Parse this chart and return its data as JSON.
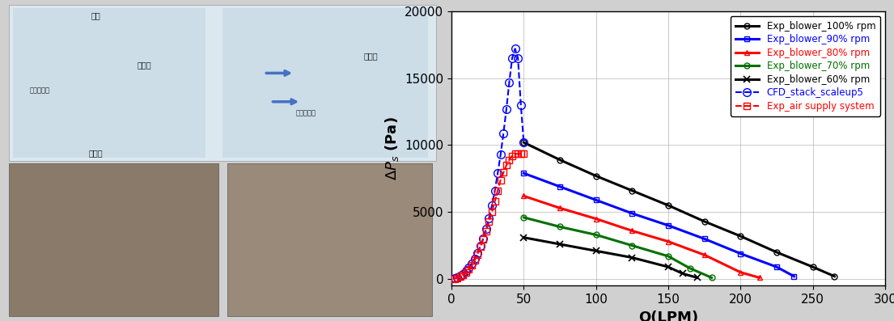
{
  "chart": {
    "xlim": [
      0,
      300
    ],
    "ylim": [
      -500,
      20000
    ],
    "xticks": [
      0,
      50,
      100,
      150,
      200,
      250,
      300
    ],
    "yticks": [
      0,
      5000,
      10000,
      15000,
      20000
    ],
    "xlabel": "Q(LPM)",
    "ylabel": "ΔP_s (Pa)",
    "grid": true,
    "series": [
      {
        "label": "Exp_blower_100% rpm",
        "color": "#000000",
        "linestyle": "-",
        "linewidth": 2.2,
        "marker": "o",
        "markersize": 5,
        "markerfacecolor": "none",
        "markeredgewidth": 1.0,
        "x": [
          50,
          75,
          100,
          125,
          150,
          175,
          200,
          225,
          250,
          265
        ],
        "y": [
          10200,
          8900,
          7700,
          6600,
          5500,
          4300,
          3200,
          2000,
          900,
          200
        ]
      },
      {
        "label": "Exp_blower_90% rpm",
        "color": "#0000ff",
        "linestyle": "-",
        "linewidth": 2.2,
        "marker": "s",
        "markersize": 5,
        "markerfacecolor": "none",
        "markeredgewidth": 1.0,
        "x": [
          50,
          75,
          100,
          125,
          150,
          175,
          200,
          225,
          237
        ],
        "y": [
          7900,
          6900,
          5900,
          4900,
          4000,
          3000,
          1900,
          900,
          200
        ]
      },
      {
        "label": "Exp_blower_80% rpm",
        "color": "#ff0000",
        "linestyle": "-",
        "linewidth": 2.2,
        "marker": "^",
        "markersize": 5,
        "markerfacecolor": "none",
        "markeredgewidth": 1.0,
        "x": [
          50,
          75,
          100,
          125,
          150,
          175,
          200,
          213
        ],
        "y": [
          6200,
          5300,
          4500,
          3600,
          2800,
          1800,
          500,
          100
        ]
      },
      {
        "label": "Exp_blower_70% rpm",
        "color": "#007000",
        "linestyle": "-",
        "linewidth": 2.2,
        "marker": "o",
        "markersize": 5,
        "markerfacecolor": "none",
        "markeredgewidth": 1.0,
        "x": [
          50,
          75,
          100,
          125,
          150,
          165,
          180
        ],
        "y": [
          4600,
          3900,
          3300,
          2500,
          1700,
          800,
          100
        ]
      },
      {
        "label": "Exp_blower_60% rpm",
        "color": "#000000",
        "linestyle": "-",
        "linewidth": 2.2,
        "marker": "x",
        "markersize": 6,
        "markerfacecolor": "none",
        "markeredgewidth": 1.2,
        "x": [
          50,
          75,
          100,
          125,
          150,
          160,
          170
        ],
        "y": [
          3100,
          2600,
          2100,
          1600,
          900,
          400,
          100
        ]
      },
      {
        "label": "CFD_stack_scaleup5",
        "color": "#0000ff",
        "linestyle": "--",
        "linewidth": 1.5,
        "marker": "o",
        "markersize": 7,
        "markerfacecolor": "none",
        "markeredgewidth": 1.0,
        "x": [
          2,
          4,
          6,
          8,
          10,
          12,
          14,
          16,
          18,
          20,
          22,
          24,
          26,
          28,
          30,
          32,
          34,
          36,
          38,
          40,
          42,
          44,
          46,
          48,
          50
        ],
        "y": [
          50,
          120,
          230,
          380,
          580,
          830,
          1130,
          1500,
          1940,
          2450,
          3050,
          3750,
          4550,
          5500,
          6600,
          7900,
          9300,
          10900,
          12700,
          14700,
          16500,
          17200,
          16500,
          13000,
          10200
        ]
      },
      {
        "label": "Exp_air supply system",
        "color": "#ff0000",
        "linestyle": "--",
        "linewidth": 1.5,
        "marker": "s",
        "markersize": 6,
        "markerfacecolor": "none",
        "markeredgewidth": 1.0,
        "x": [
          2,
          4,
          6,
          8,
          10,
          12,
          14,
          16,
          18,
          20,
          22,
          24,
          26,
          28,
          30,
          32,
          34,
          36,
          38,
          40,
          42,
          44,
          46,
          48,
          50
        ],
        "y": [
          30,
          80,
          160,
          290,
          470,
          700,
          1000,
          1380,
          1840,
          2400,
          2970,
          3590,
          4280,
          5000,
          5800,
          6600,
          7400,
          7950,
          8500,
          8900,
          9200,
          9350,
          9350,
          9350,
          9350
        ]
      }
    ],
    "legend_fontsize": 8.5,
    "axis_label_fontsize": 13,
    "tick_fontsize": 11,
    "background_color": "#ffffff"
  }
}
